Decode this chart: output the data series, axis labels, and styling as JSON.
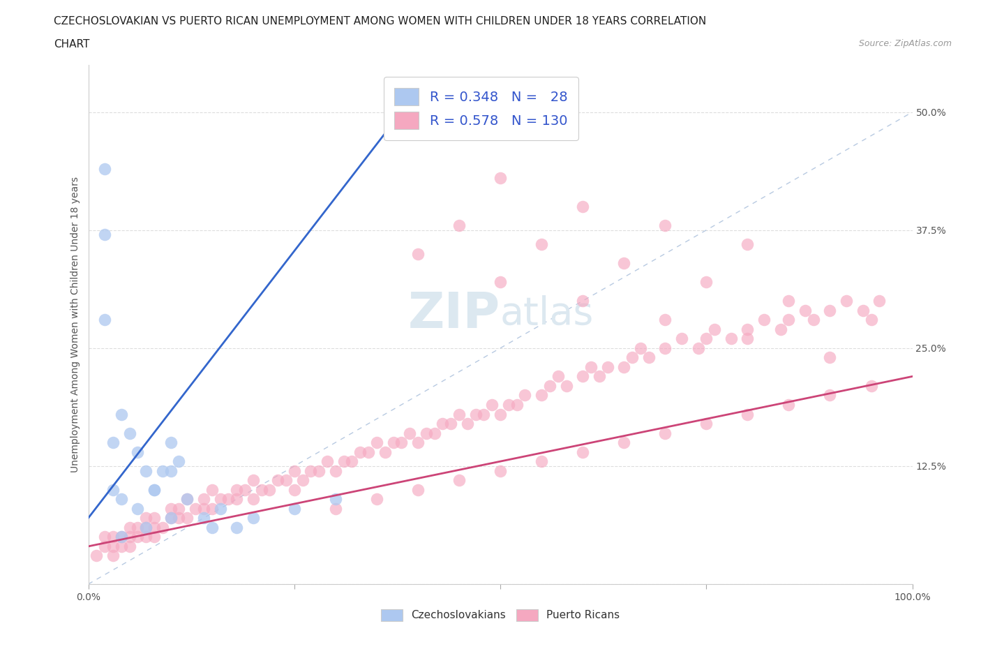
{
  "title_line1": "CZECHOSLOVAKIAN VS PUERTO RICAN UNEMPLOYMENT AMONG WOMEN WITH CHILDREN UNDER 18 YEARS CORRELATION",
  "title_line2": "CHART",
  "source": "Source: ZipAtlas.com",
  "ylabel": "Unemployment Among Women with Children Under 18 years",
  "xlim": [
    0.0,
    1.0
  ],
  "ylim": [
    0.0,
    0.55
  ],
  "czech_R": 0.348,
  "czech_N": 28,
  "puerto_R": 0.578,
  "puerto_N": 130,
  "czech_color": "#adc8f0",
  "puerto_color": "#f5a8c0",
  "czech_line_color": "#3366cc",
  "puerto_line_color": "#cc4477",
  "diagonal_color": "#b0c4de",
  "watermark_color": "#dce8f0",
  "background_color": "#ffffff",
  "legend_text_color": "#3355cc",
  "czech_scatter_x": [
    0.02,
    0.03,
    0.04,
    0.05,
    0.06,
    0.07,
    0.08,
    0.09,
    0.1,
    0.11,
    0.02,
    0.03,
    0.04,
    0.06,
    0.08,
    0.1,
    0.12,
    0.14,
    0.16,
    0.18,
    0.02,
    0.04,
    0.07,
    0.1,
    0.15,
    0.2,
    0.25,
    0.3
  ],
  "czech_scatter_y": [
    0.28,
    0.15,
    0.18,
    0.16,
    0.14,
    0.12,
    0.1,
    0.12,
    0.15,
    0.13,
    0.37,
    0.1,
    0.09,
    0.08,
    0.1,
    0.12,
    0.09,
    0.07,
    0.08,
    0.06,
    0.44,
    0.05,
    0.06,
    0.07,
    0.06,
    0.07,
    0.08,
    0.09
  ],
  "puerto_scatter_x": [
    0.01,
    0.02,
    0.02,
    0.03,
    0.03,
    0.03,
    0.04,
    0.04,
    0.05,
    0.05,
    0.05,
    0.06,
    0.06,
    0.07,
    0.07,
    0.07,
    0.08,
    0.08,
    0.08,
    0.09,
    0.1,
    0.1,
    0.11,
    0.11,
    0.12,
    0.12,
    0.13,
    0.14,
    0.14,
    0.15,
    0.15,
    0.16,
    0.17,
    0.18,
    0.18,
    0.19,
    0.2,
    0.2,
    0.21,
    0.22,
    0.23,
    0.24,
    0.25,
    0.25,
    0.26,
    0.27,
    0.28,
    0.29,
    0.3,
    0.31,
    0.32,
    0.33,
    0.34,
    0.35,
    0.36,
    0.37,
    0.38,
    0.39,
    0.4,
    0.41,
    0.42,
    0.43,
    0.44,
    0.45,
    0.46,
    0.47,
    0.48,
    0.49,
    0.5,
    0.51,
    0.52,
    0.53,
    0.55,
    0.56,
    0.57,
    0.58,
    0.6,
    0.61,
    0.62,
    0.63,
    0.65,
    0.66,
    0.67,
    0.68,
    0.7,
    0.72,
    0.74,
    0.75,
    0.76,
    0.78,
    0.8,
    0.82,
    0.84,
    0.85,
    0.87,
    0.88,
    0.9,
    0.92,
    0.94,
    0.96,
    0.3,
    0.35,
    0.4,
    0.45,
    0.5,
    0.55,
    0.6,
    0.65,
    0.7,
    0.75,
    0.8,
    0.85,
    0.9,
    0.95,
    0.4,
    0.5,
    0.6,
    0.7,
    0.8,
    0.9,
    0.45,
    0.55,
    0.65,
    0.75,
    0.85,
    0.95,
    0.5,
    0.6,
    0.7,
    0.8
  ],
  "puerto_scatter_y": [
    0.03,
    0.04,
    0.05,
    0.03,
    0.04,
    0.05,
    0.04,
    0.05,
    0.04,
    0.05,
    0.06,
    0.05,
    0.06,
    0.05,
    0.06,
    0.07,
    0.05,
    0.06,
    0.07,
    0.06,
    0.07,
    0.08,
    0.07,
    0.08,
    0.07,
    0.09,
    0.08,
    0.08,
    0.09,
    0.08,
    0.1,
    0.09,
    0.09,
    0.09,
    0.1,
    0.1,
    0.09,
    0.11,
    0.1,
    0.1,
    0.11,
    0.11,
    0.1,
    0.12,
    0.11,
    0.12,
    0.12,
    0.13,
    0.12,
    0.13,
    0.13,
    0.14,
    0.14,
    0.15,
    0.14,
    0.15,
    0.15,
    0.16,
    0.15,
    0.16,
    0.16,
    0.17,
    0.17,
    0.18,
    0.17,
    0.18,
    0.18,
    0.19,
    0.18,
    0.19,
    0.19,
    0.2,
    0.2,
    0.21,
    0.22,
    0.21,
    0.22,
    0.23,
    0.22,
    0.23,
    0.23,
    0.24,
    0.25,
    0.24,
    0.25,
    0.26,
    0.25,
    0.26,
    0.27,
    0.26,
    0.27,
    0.28,
    0.27,
    0.28,
    0.29,
    0.28,
    0.29,
    0.3,
    0.29,
    0.3,
    0.08,
    0.09,
    0.1,
    0.11,
    0.12,
    0.13,
    0.14,
    0.15,
    0.16,
    0.17,
    0.18,
    0.19,
    0.2,
    0.21,
    0.35,
    0.32,
    0.3,
    0.28,
    0.26,
    0.24,
    0.38,
    0.36,
    0.34,
    0.32,
    0.3,
    0.28,
    0.43,
    0.4,
    0.38,
    0.36
  ]
}
